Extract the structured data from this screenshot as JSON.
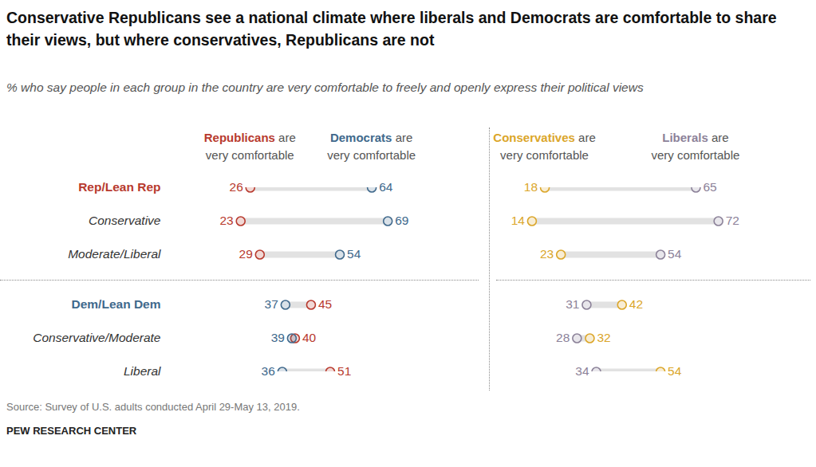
{
  "chart_data": {
    "type": "dumbbell",
    "title": "Conservative Republicans see a national climate where liberals and Democrats are comfortable to share their views, but where conservatives, Republicans are not",
    "subtitle": "% who say people in each group in the country are very comfortable to freely and openly express their political views",
    "source": "Source: Survey of U.S. adults conducted April 29-May 13, 2019.",
    "credit": "PEW RESEARCH CENTER",
    "categories": [
      "Rep/Lean Rep",
      "Conservative",
      "Moderate/Liberal",
      "Dem/Lean Dem",
      "Conservative/Moderate",
      "Liberal"
    ],
    "xlim": [
      0,
      100
    ],
    "tick_labels": false,
    "data_labels": true,
    "panels": [
      {
        "series": [
          {
            "name": "Republicans are very comfortable",
            "color": "#b83a2e",
            "values": [
              26,
              23,
              29,
              45,
              40,
              51
            ]
          },
          {
            "name": "Democrats are very comfortable",
            "color": "#40698c",
            "values": [
              64,
              69,
              54,
              37,
              39,
              36
            ]
          }
        ]
      },
      {
        "series": [
          {
            "name": "Conservatives are very comfortable",
            "color": "#dba62a",
            "values": [
              18,
              14,
              23,
              42,
              32,
              54
            ]
          },
          {
            "name": "Liberals are very comfortable",
            "color": "#8c8299",
            "values": [
              65,
              72,
              54,
              31,
              28,
              34
            ]
          }
        ]
      }
    ]
  }
}
